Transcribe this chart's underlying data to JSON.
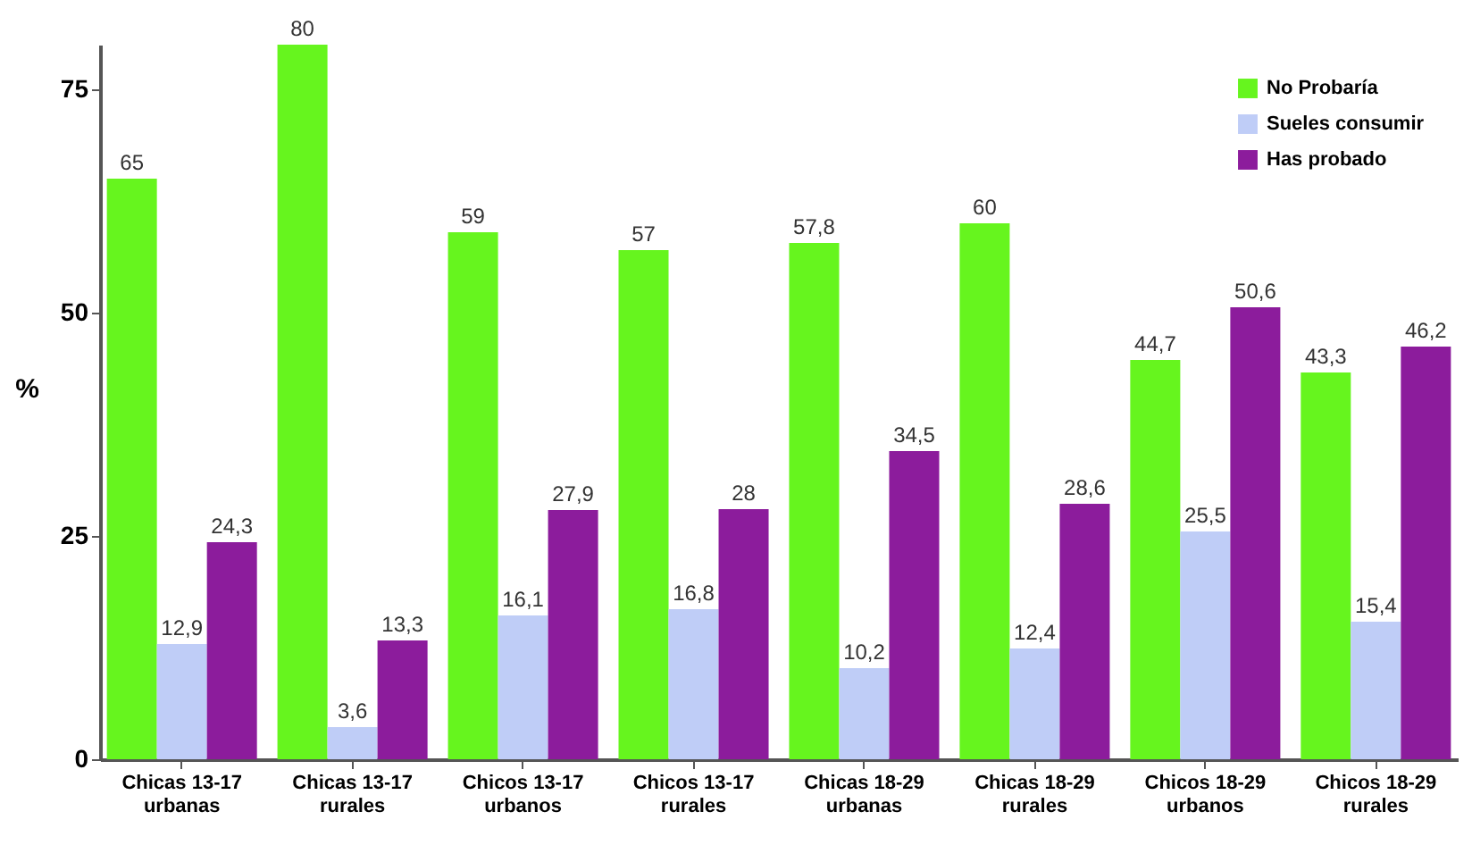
{
  "chart_data": {
    "type": "bar",
    "ylabel": "%",
    "categories": [
      "Chicas 13-17\nurbanas",
      "Chicas 13-17\nrurales",
      "Chicos 13-17\nurbanos",
      "Chicos 13-17\nrurales",
      "Chicas 18-29\nurbanas",
      "Chicas  18-29\nrurales",
      "Chicos 18-29\nurbanos",
      "Chicos 18-29\nrurales"
    ],
    "series": [
      {
        "name": "No Probaría",
        "color": "#66f51e",
        "values": [
          65,
          80,
          59,
          57,
          57.8,
          60,
          44.7,
          43.3
        ],
        "value_labels": [
          "65",
          "80",
          "59",
          "57",
          "57,8",
          "60",
          "44,7",
          "43,3"
        ]
      },
      {
        "name": "Sueles consumir",
        "color": "#bfcdf7",
        "values": [
          12.9,
          3.6,
          16.1,
          16.8,
          10.2,
          12.4,
          25.5,
          15.4
        ],
        "value_labels": [
          "12,9",
          "3,6",
          "16,1",
          "16,8",
          "10,2",
          "12,4",
          "25,5",
          "15,4"
        ]
      },
      {
        "name": "Has probado",
        "color": "#8c1c9c",
        "values": [
          24.3,
          13.3,
          27.9,
          28,
          34.5,
          28.6,
          50.6,
          46.2
        ],
        "value_labels": [
          "24,3",
          "13,3",
          "27,9",
          "28",
          "34,5",
          "28,6",
          "50,6",
          "46,2"
        ]
      }
    ],
    "ylim": [
      0,
      80
    ],
    "yticks": [
      0,
      25,
      50,
      75
    ],
    "grid": false,
    "legend": "top right"
  }
}
